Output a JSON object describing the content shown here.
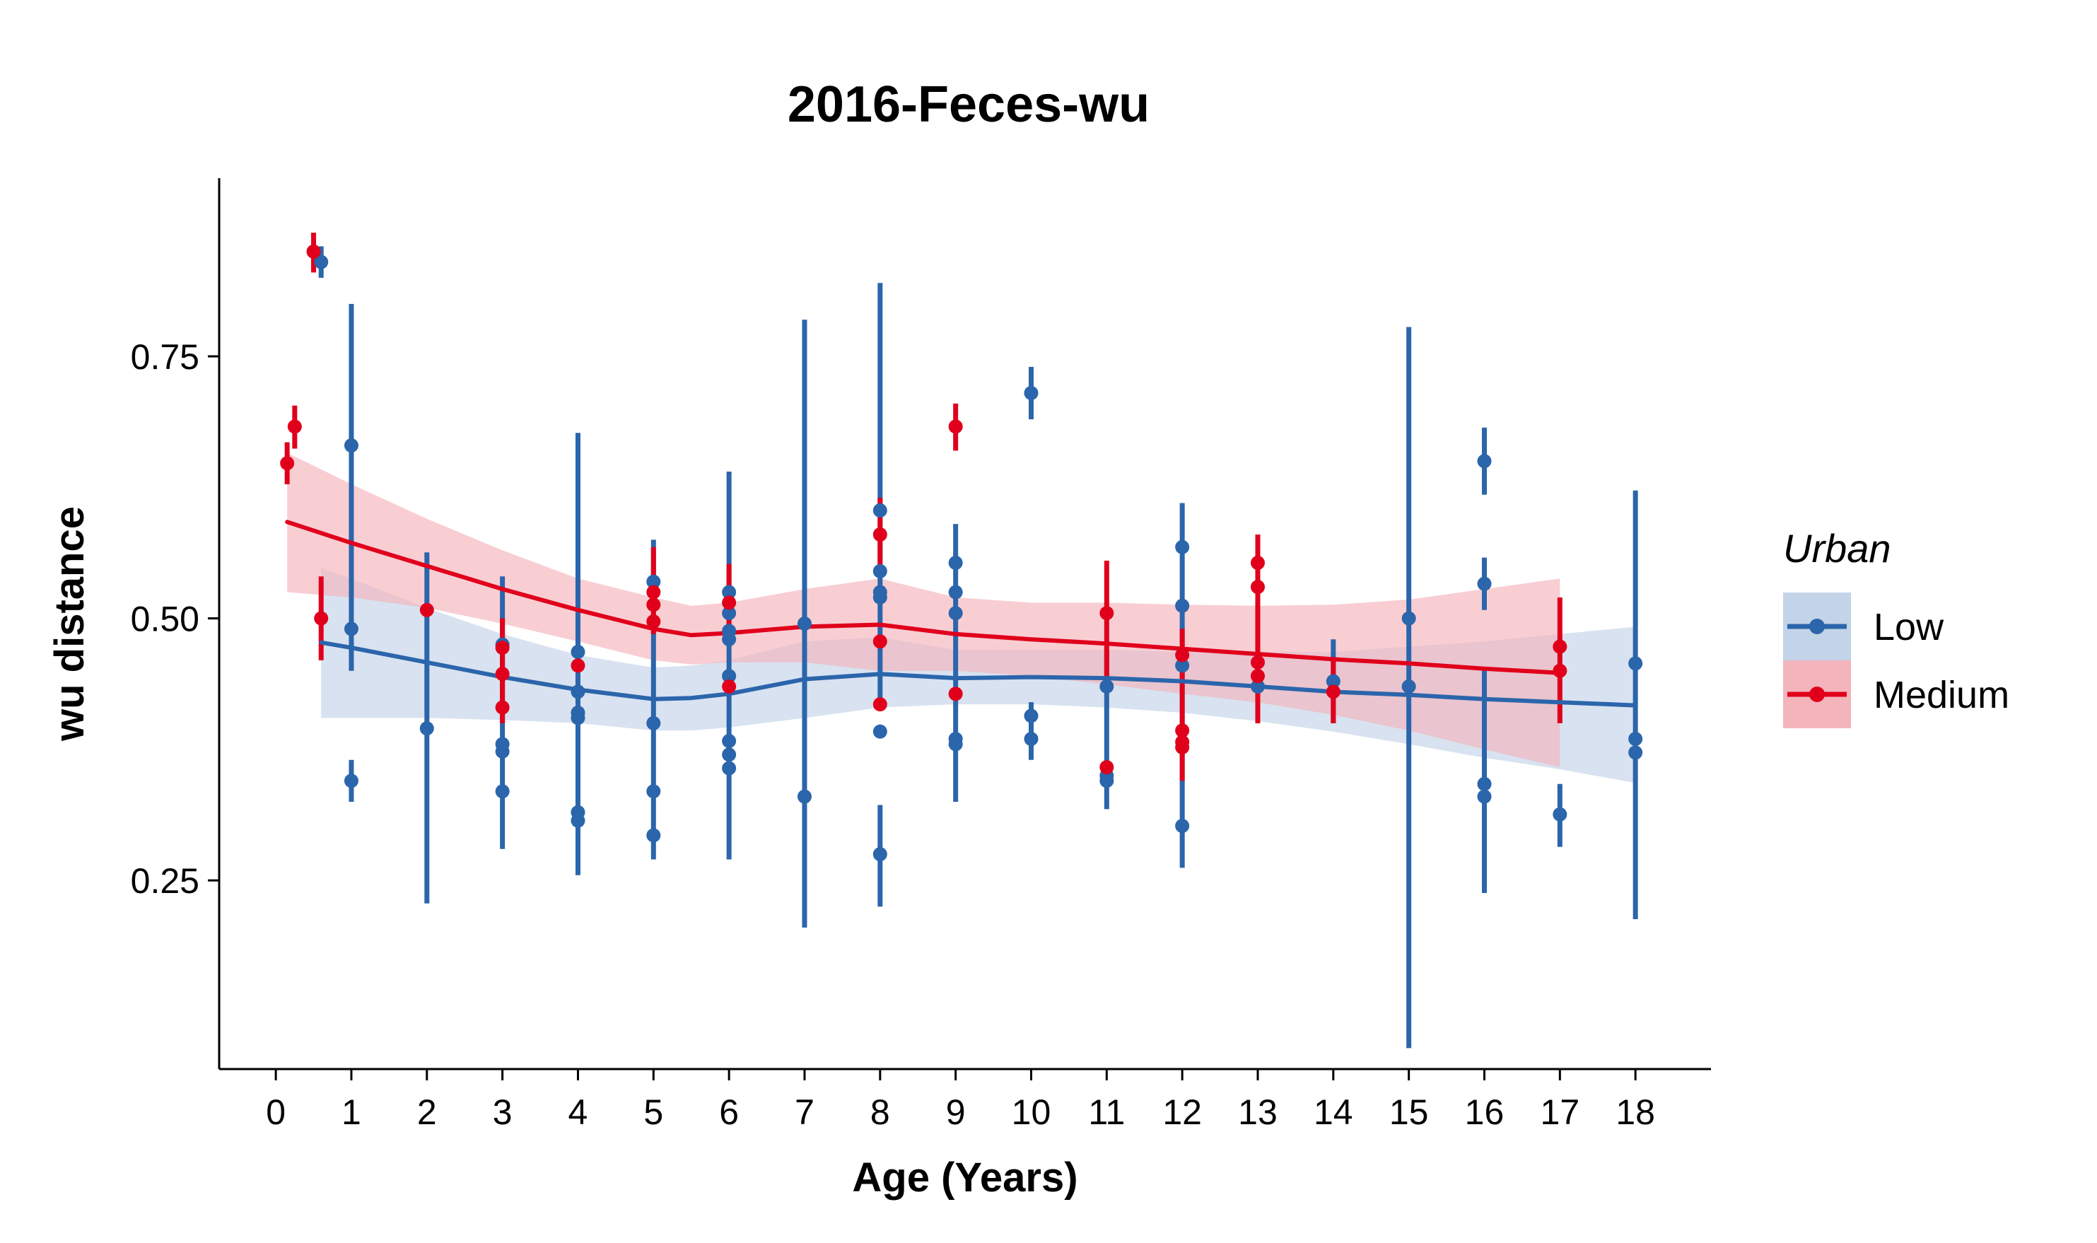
{
  "chart_data": {
    "type": "scatter",
    "title": "2016-Feces-wu",
    "xlabel": "Age (Years)",
    "ylabel": "wu distance",
    "xlim": [
      -0.75,
      19.0
    ],
    "ylim": [
      0.07,
      0.92
    ],
    "x_ticks": [
      "0",
      "1",
      "2",
      "3",
      "4",
      "5",
      "6",
      "7",
      "8",
      "9",
      "10",
      "11",
      "12",
      "13",
      "14",
      "15",
      "16",
      "17",
      "18"
    ],
    "y_ticks": [
      "0.25",
      "0.50",
      "0.75"
    ],
    "grid": false,
    "legend": {
      "title": "Urban",
      "position": "right",
      "entries": [
        "Low",
        "Medium"
      ]
    },
    "colors": {
      "Low": "#2B65AB",
      "Medium": "#E0001B",
      "Low_band": "#C3D3E8",
      "Medium_band": "#F4B4BC"
    },
    "series": [
      {
        "name": "Low",
        "points": [
          {
            "x": 0.6,
            "y": 0.84,
            "lo": 0.825,
            "hi": 0.855
          },
          {
            "x": 1,
            "y": 0.665,
            "lo": 0.45,
            "hi": 0.8
          },
          {
            "x": 1,
            "y": 0.49
          },
          {
            "x": 1,
            "y": 0.345,
            "lo": 0.325,
            "hi": 0.365
          },
          {
            "x": 2,
            "y": 0.395,
            "lo": 0.228,
            "hi": 0.563
          },
          {
            "x": 3,
            "y": 0.475,
            "lo": 0.28,
            "hi": 0.54
          },
          {
            "x": 3,
            "y": 0.38
          },
          {
            "x": 3,
            "y": 0.373
          },
          {
            "x": 3,
            "y": 0.335
          },
          {
            "x": 4,
            "y": 0.468,
            "lo": 0.255,
            "hi": 0.677
          },
          {
            "x": 4,
            "y": 0.43
          },
          {
            "x": 4,
            "y": 0.41
          },
          {
            "x": 4,
            "y": 0.405
          },
          {
            "x": 4,
            "y": 0.315
          },
          {
            "x": 4,
            "y": 0.307
          },
          {
            "x": 5,
            "y": 0.535,
            "lo": 0.27,
            "hi": 0.575
          },
          {
            "x": 5,
            "y": 0.4
          },
          {
            "x": 5,
            "y": 0.335
          },
          {
            "x": 5,
            "y": 0.293
          },
          {
            "x": 6,
            "y": 0.525,
            "lo": 0.27,
            "hi": 0.64
          },
          {
            "x": 6,
            "y": 0.505
          },
          {
            "x": 6,
            "y": 0.488
          },
          {
            "x": 6,
            "y": 0.48
          },
          {
            "x": 6,
            "y": 0.445
          },
          {
            "x": 6,
            "y": 0.383
          },
          {
            "x": 6,
            "y": 0.37
          },
          {
            "x": 6,
            "y": 0.357
          },
          {
            "x": 7,
            "y": 0.495,
            "lo": 0.205,
            "hi": 0.785
          },
          {
            "x": 7,
            "y": 0.33
          },
          {
            "x": 8,
            "y": 0.603,
            "lo": 0.415,
            "hi": 0.82
          },
          {
            "x": 8,
            "y": 0.545
          },
          {
            "x": 8,
            "y": 0.525
          },
          {
            "x": 8,
            "y": 0.52
          },
          {
            "x": 8,
            "y": 0.392
          },
          {
            "x": 8,
            "y": 0.275,
            "lo": 0.225,
            "hi": 0.322
          },
          {
            "x": 9,
            "y": 0.553,
            "lo": 0.325,
            "hi": 0.59
          },
          {
            "x": 9,
            "y": 0.525
          },
          {
            "x": 9,
            "y": 0.505
          },
          {
            "x": 9,
            "y": 0.385
          },
          {
            "x": 9,
            "y": 0.38
          },
          {
            "x": 10,
            "y": 0.715,
            "lo": 0.69,
            "hi": 0.74
          },
          {
            "x": 10,
            "y": 0.407,
            "lo": 0.365,
            "hi": 0.42
          },
          {
            "x": 10,
            "y": 0.385
          },
          {
            "x": 11,
            "y": 0.435,
            "lo": 0.318,
            "hi": 0.47
          },
          {
            "x": 11,
            "y": 0.35
          },
          {
            "x": 11,
            "y": 0.345
          },
          {
            "x": 12,
            "y": 0.568,
            "lo": 0.262,
            "hi": 0.61
          },
          {
            "x": 12,
            "y": 0.512
          },
          {
            "x": 12,
            "y": 0.455
          },
          {
            "x": 12,
            "y": 0.302
          },
          {
            "x": 13,
            "y": 0.435,
            "lo": 0.4,
            "hi": 0.47
          },
          {
            "x": 14,
            "y": 0.44,
            "lo": 0.4,
            "hi": 0.48
          },
          {
            "x": 15,
            "y": 0.5,
            "lo": 0.09,
            "hi": 0.778
          },
          {
            "x": 15,
            "y": 0.435
          },
          {
            "x": 16,
            "y": 0.65,
            "lo": 0.618,
            "hi": 0.682
          },
          {
            "x": 16,
            "y": 0.533,
            "lo": 0.508,
            "hi": 0.558
          },
          {
            "x": 16,
            "y": 0.342,
            "lo": 0.238,
            "hi": 0.452
          },
          {
            "x": 16,
            "y": 0.33
          },
          {
            "x": 17,
            "y": 0.313,
            "lo": 0.282,
            "hi": 0.342
          },
          {
            "x": 18,
            "y": 0.457,
            "lo": 0.213,
            "hi": 0.622
          },
          {
            "x": 18,
            "y": 0.385
          },
          {
            "x": 18,
            "y": 0.372
          }
        ],
        "smooth_x": [
          0.6,
          1,
          2,
          3,
          4,
          5,
          5.5,
          6,
          7,
          8,
          9,
          10,
          11,
          12,
          13,
          14,
          15,
          16,
          17,
          18
        ],
        "smooth_y": [
          0.477,
          0.472,
          0.458,
          0.444,
          0.432,
          0.423,
          0.424,
          0.428,
          0.442,
          0.447,
          0.443,
          0.444,
          0.443,
          0.44,
          0.435,
          0.43,
          0.427,
          0.423,
          0.42,
          0.417
        ],
        "band_lo": [
          0.405,
          0.405,
          0.405,
          0.403,
          0.4,
          0.393,
          0.393,
          0.396,
          0.405,
          0.415,
          0.418,
          0.418,
          0.415,
          0.41,
          0.402,
          0.392,
          0.38,
          0.367,
          0.356,
          0.343
        ],
        "band_hi": [
          0.548,
          0.538,
          0.51,
          0.485,
          0.465,
          0.453,
          0.455,
          0.46,
          0.478,
          0.482,
          0.47,
          0.47,
          0.47,
          0.468,
          0.468,
          0.468,
          0.473,
          0.478,
          0.485,
          0.492
        ]
      },
      {
        "name": "Medium",
        "points": [
          {
            "x": 0.15,
            "y": 0.648,
            "lo": 0.628,
            "hi": 0.668
          },
          {
            "x": 0.25,
            "y": 0.683,
            "lo": 0.662,
            "hi": 0.703
          },
          {
            "x": 0.5,
            "y": 0.85,
            "lo": 0.83,
            "hi": 0.868
          },
          {
            "x": 0.6,
            "y": 0.5,
            "lo": 0.46,
            "hi": 0.54
          },
          {
            "x": 2,
            "y": 0.508
          },
          {
            "x": 3,
            "y": 0.472,
            "lo": 0.4,
            "hi": 0.5
          },
          {
            "x": 3,
            "y": 0.447
          },
          {
            "x": 3,
            "y": 0.415
          },
          {
            "x": 4,
            "y": 0.455
          },
          {
            "x": 5,
            "y": 0.525,
            "lo": 0.485,
            "hi": 0.568
          },
          {
            "x": 5,
            "y": 0.513
          },
          {
            "x": 5,
            "y": 0.497
          },
          {
            "x": 6,
            "y": 0.515,
            "lo": 0.49,
            "hi": 0.552
          },
          {
            "x": 6,
            "y": 0.435
          },
          {
            "x": 8,
            "y": 0.58,
            "lo": 0.545,
            "hi": 0.615
          },
          {
            "x": 8,
            "y": 0.478
          },
          {
            "x": 8,
            "y": 0.418
          },
          {
            "x": 9,
            "y": 0.683,
            "lo": 0.66,
            "hi": 0.705
          },
          {
            "x": 9,
            "y": 0.428
          },
          {
            "x": 11,
            "y": 0.505,
            "lo": 0.445,
            "hi": 0.555
          },
          {
            "x": 11,
            "y": 0.358
          },
          {
            "x": 12,
            "y": 0.465,
            "lo": 0.345,
            "hi": 0.49
          },
          {
            "x": 12,
            "y": 0.393
          },
          {
            "x": 12,
            "y": 0.382
          },
          {
            "x": 12,
            "y": 0.377
          },
          {
            "x": 13,
            "y": 0.553,
            "lo": 0.4,
            "hi": 0.58
          },
          {
            "x": 13,
            "y": 0.53
          },
          {
            "x": 13,
            "y": 0.458
          },
          {
            "x": 13,
            "y": 0.445
          },
          {
            "x": 14,
            "y": 0.43,
            "lo": 0.4,
            "hi": 0.462
          },
          {
            "x": 17,
            "y": 0.473,
            "lo": 0.4,
            "hi": 0.52
          },
          {
            "x": 17,
            "y": 0.45
          }
        ],
        "smooth_x": [
          0.15,
          1,
          2,
          3,
          4,
          5,
          5.5,
          6,
          7,
          8,
          9,
          10,
          11,
          12,
          13,
          14,
          15,
          16,
          17
        ],
        "smooth_y": [
          0.592,
          0.572,
          0.55,
          0.528,
          0.508,
          0.49,
          0.484,
          0.486,
          0.492,
          0.494,
          0.485,
          0.48,
          0.476,
          0.471,
          0.466,
          0.461,
          0.457,
          0.452,
          0.448
        ],
        "band_lo": [
          0.525,
          0.52,
          0.51,
          0.495,
          0.478,
          0.46,
          0.456,
          0.458,
          0.458,
          0.45,
          0.45,
          0.445,
          0.437,
          0.428,
          0.42,
          0.408,
          0.393,
          0.375,
          0.358
        ],
        "band_hi": [
          0.658,
          0.628,
          0.595,
          0.565,
          0.538,
          0.52,
          0.512,
          0.515,
          0.528,
          0.538,
          0.52,
          0.515,
          0.515,
          0.513,
          0.512,
          0.513,
          0.518,
          0.528,
          0.538
        ]
      }
    ]
  }
}
